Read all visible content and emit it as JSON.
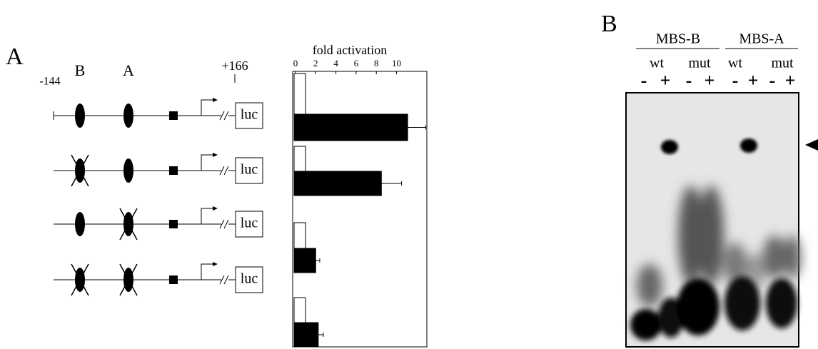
{
  "panel_a": {
    "label": "A",
    "start": "-144",
    "sites": [
      "B",
      "A"
    ],
    "end": "+166",
    "reporters": [
      "luc",
      "luc",
      "luc",
      "luc"
    ]
  },
  "chart_data": {
    "type": "hbar",
    "title": "fold activation",
    "categories": [
      null,
      null,
      null,
      null
    ],
    "series": [
      {
        "color": "#ffffff",
        "values": [
          1,
          1,
          1,
          1
        ]
      },
      {
        "color": "#000000",
        "values": [
          11.1,
          8.5,
          2.0,
          2.25
        ],
        "errors": [
          1.8,
          2.0,
          0.4,
          0.5
        ]
      }
    ],
    "xlim": [
      0,
      13
    ],
    "xticks": [
      0,
      2,
      4,
      6,
      8,
      10
    ]
  },
  "panel_b": {
    "label": "B",
    "probes": [
      "MBS-B",
      "MBS-A"
    ],
    "variants": [
      "wt",
      "mut",
      "wt",
      "mut"
    ],
    "lanes": [
      "-",
      "+",
      "-",
      "+",
      "-",
      "+",
      "-",
      "+"
    ]
  }
}
